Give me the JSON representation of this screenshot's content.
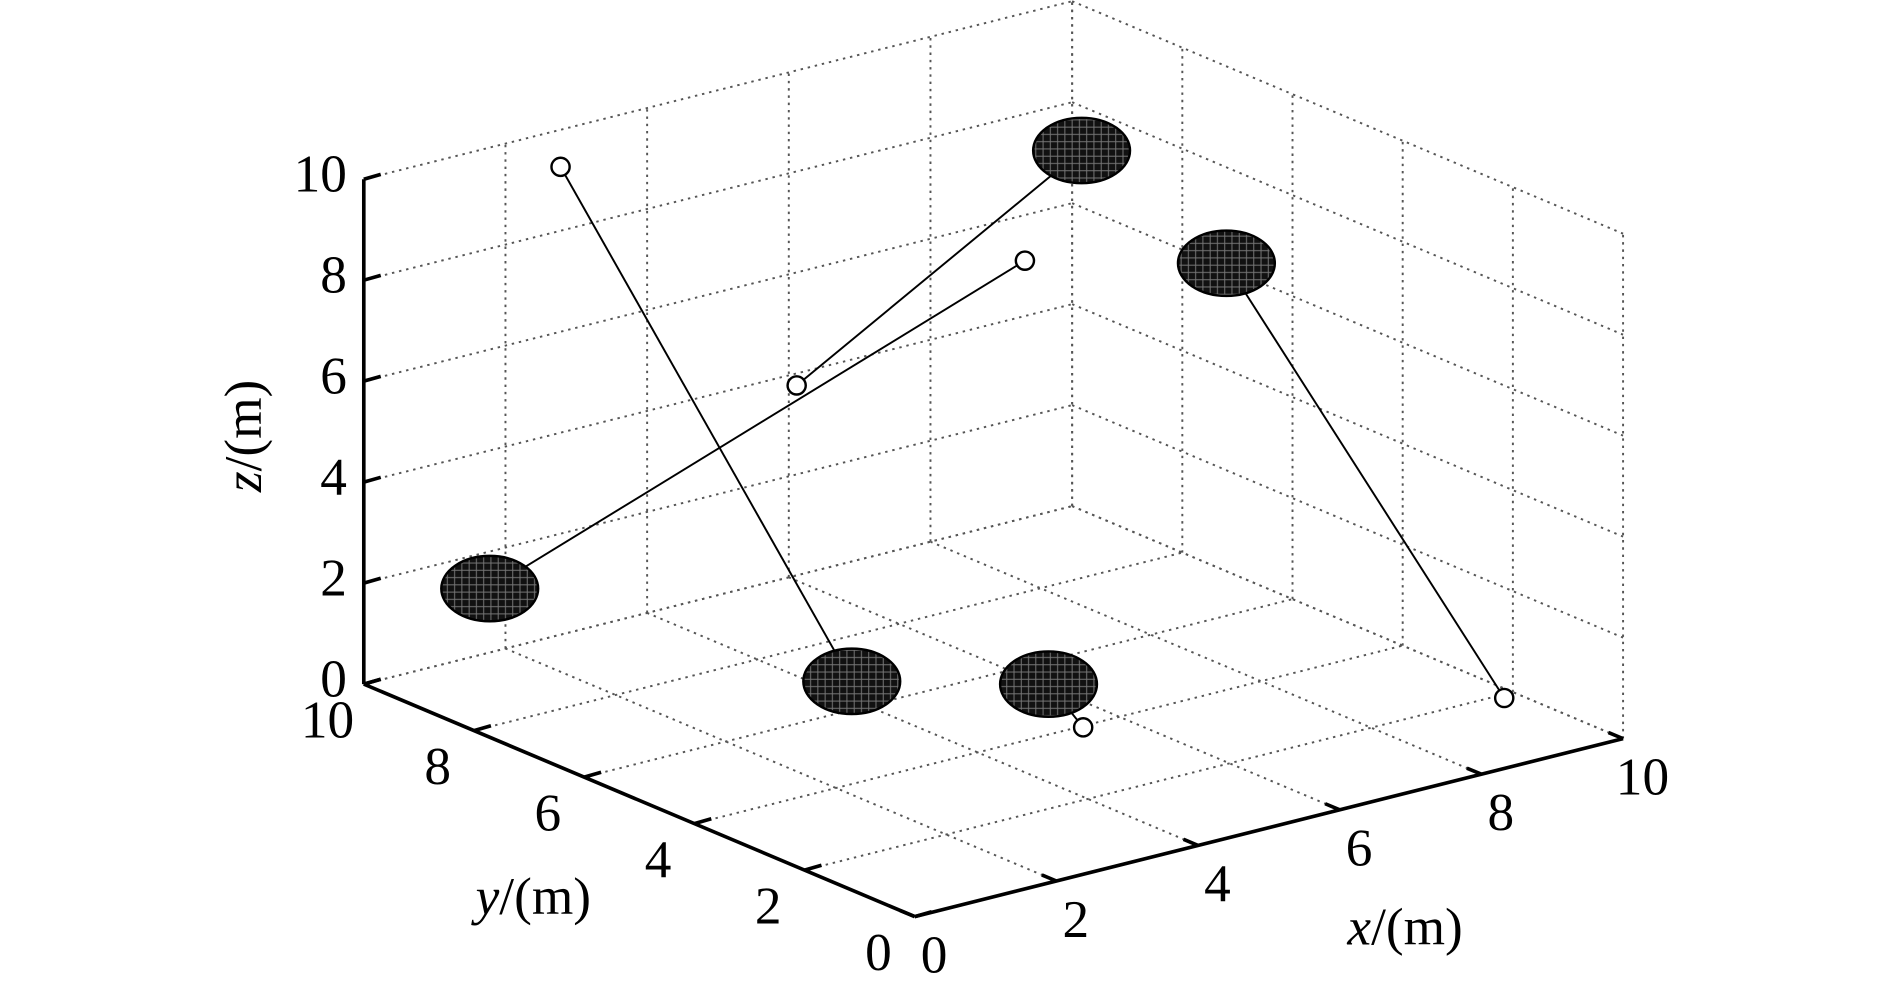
{
  "chart_data": {
    "type": "trajectory3d",
    "xlabel": "x/(m)",
    "ylabel": "y/(m)",
    "zlabel": "z/(m)",
    "xlim": [
      0,
      10
    ],
    "ylim": [
      0,
      10
    ],
    "zlim": [
      0,
      10
    ],
    "xticks": [
      0,
      2,
      4,
      6,
      8,
      10
    ],
    "yticks": [
      0,
      2,
      4,
      6,
      8,
      10
    ],
    "zticks": [
      0,
      2,
      4,
      6,
      8,
      10
    ],
    "grid": true,
    "color": "#000000",
    "trajectories": [
      {
        "x": [
          2,
          3
        ],
        "y": [
          9,
          5
        ],
        "z": [
          10,
          1.3
        ]
      },
      {
        "x": [
          7,
          1
        ],
        "y": [
          7,
          9
        ],
        "z": [
          7.3,
          2
        ]
      },
      {
        "x": [
          3,
          7.8
        ],
        "y": [
          6,
          7
        ],
        "z": [
          6.7,
          9.2
        ]
      },
      {
        "x": [
          9.8,
          10
        ],
        "y": [
          1.9,
          7.2
        ],
        "z": [
          0,
          6.1
        ]
      },
      {
        "x": [
          4.4,
          5
        ],
        "y": [
          2.6,
          4
        ],
        "z": [
          1,
          1
        ]
      }
    ]
  }
}
